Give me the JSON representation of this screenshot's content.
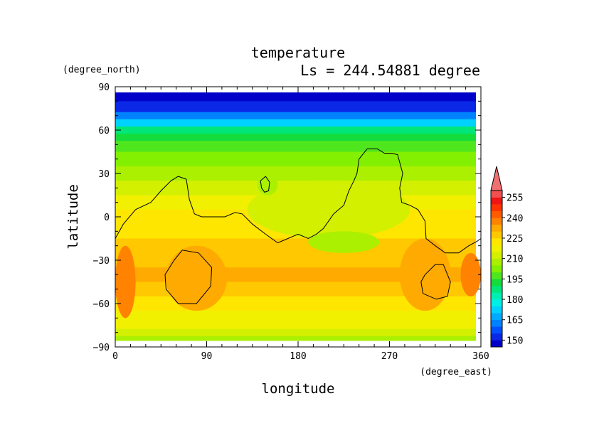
{
  "chart_data": {
    "type": "heatmap",
    "title": "temperature",
    "subtitle": "Ls = 244.54881 degree",
    "xlabel": "longitude",
    "ylabel": "latitude",
    "x_unit": "(degree_east)",
    "y_unit": "(degree_north)",
    "xlim": [
      0,
      360
    ],
    "ylim": [
      -90,
      90
    ],
    "x_ticks": [
      0,
      90,
      180,
      270,
      360
    ],
    "y_ticks": [
      90,
      60,
      30,
      0,
      -30,
      -60,
      -90
    ],
    "x_tick_labels": [
      "0",
      "90",
      "180",
      "270",
      "360"
    ],
    "y_tick_labels": [
      "90",
      "60",
      "30",
      "0",
      "−30",
      "−60",
      "−90"
    ],
    "colorbar": {
      "levels": [
        145,
        150,
        155,
        160,
        165,
        170,
        175,
        180,
        185,
        190,
        195,
        200,
        205,
        210,
        215,
        220,
        225,
        230,
        235,
        240,
        245,
        250,
        255,
        260
      ],
      "tick_labels": [
        "150",
        "165",
        "180",
        "195",
        "210",
        "225",
        "240",
        "255"
      ],
      "colors": [
        "#0000c8",
        "#0a28e6",
        "#0050ff",
        "#0082ff",
        "#00aaff",
        "#00d2ff",
        "#00f0e6",
        "#00f0b4",
        "#00e678",
        "#14dc3c",
        "#50e61e",
        "#82f000",
        "#aaf000",
        "#d2f000",
        "#f0f000",
        "#ffe600",
        "#ffc800",
        "#ffaa00",
        "#ff8200",
        "#ff5a00",
        "#ff3200",
        "#f01414",
        "#f05050"
      ],
      "overflow_color": "#f07070"
    },
    "lat_bands": [
      {
        "lat": 85,
        "value": 147
      },
      {
        "lat": 75,
        "value": 150
      },
      {
        "lat": 70,
        "value": 160
      },
      {
        "lat": 65,
        "value": 172
      },
      {
        "lat": 60,
        "value": 185
      },
      {
        "lat": 55,
        "value": 193
      },
      {
        "lat": 50,
        "value": 198
      },
      {
        "lat": 40,
        "value": 203
      },
      {
        "lat": 30,
        "value": 208
      },
      {
        "lat": 20,
        "value": 213
      },
      {
        "lat": 10,
        "value": 215
      },
      {
        "lat": 0,
        "value": 220
      },
      {
        "lat": -10,
        "value": 223
      },
      {
        "lat": -20,
        "value": 225
      },
      {
        "lat": -30,
        "value": 228
      },
      {
        "lat": -40,
        "value": 230
      },
      {
        "lat": -50,
        "value": 228
      },
      {
        "lat": -60,
        "value": 223
      },
      {
        "lat": -70,
        "value": 219
      },
      {
        "lat": -75,
        "value": 216
      },
      {
        "lat": -80,
        "value": 212
      },
      {
        "lat": -85,
        "value": 208
      }
    ],
    "warm_regions": [
      {
        "lon": [
          0,
          20
        ],
        "lat": [
          -70,
          -20
        ],
        "value": 237
      },
      {
        "lon": [
          50,
          110
        ],
        "lat": [
          -65,
          -20
        ],
        "value": 232
      },
      {
        "lon": [
          280,
          330
        ],
        "lat": [
          -65,
          -15
        ],
        "value": 231
      },
      {
        "lon": [
          340,
          360
        ],
        "lat": [
          -55,
          -25
        ],
        "value": 237
      }
    ],
    "cool_regions": [
      {
        "lon": [
          130,
          290
        ],
        "lat": [
          -15,
          25
        ],
        "value": 210
      },
      {
        "lon": [
          190,
          260
        ],
        "lat": [
          -25,
          -10
        ],
        "value": 208
      },
      {
        "lon": [
          140,
          160
        ],
        "lat": [
          15,
          30
        ],
        "value": 208
      }
    ],
    "contours": [
      [
        [
          0,
          -15
        ],
        [
          8,
          -5
        ],
        [
          20,
          5
        ],
        [
          35,
          10
        ],
        [
          45,
          18
        ],
        [
          55,
          25
        ],
        [
          62,
          28
        ],
        [
          70,
          26
        ],
        [
          73,
          12
        ],
        [
          78,
          2
        ],
        [
          85,
          0
        ],
        [
          100,
          0
        ],
        [
          108,
          0
        ],
        [
          118,
          3
        ],
        [
          125,
          2
        ],
        [
          135,
          -5
        ],
        [
          148,
          -12
        ],
        [
          160,
          -18
        ],
        [
          170,
          -15
        ],
        [
          180,
          -12
        ],
        [
          190,
          -15
        ],
        [
          198,
          -12
        ],
        [
          205,
          -8
        ],
        [
          215,
          2
        ],
        [
          225,
          8
        ],
        [
          230,
          18
        ],
        [
          235,
          25
        ],
        [
          238,
          30
        ],
        [
          240,
          40
        ],
        [
          248,
          47
        ],
        [
          258,
          47
        ],
        [
          265,
          44
        ],
        [
          272,
          44
        ],
        [
          278,
          43
        ],
        [
          283,
          30
        ],
        [
          280,
          20
        ],
        [
          282,
          10
        ],
        [
          290,
          8
        ],
        [
          298,
          5
        ],
        [
          305,
          -3
        ],
        [
          306,
          -15
        ],
        [
          315,
          -20
        ],
        [
          325,
          -25
        ],
        [
          338,
          -25
        ],
        [
          348,
          -20
        ],
        [
          356,
          -17
        ],
        [
          360,
          -15
        ]
      ],
      [
        [
          143,
          25
        ],
        [
          148,
          28
        ],
        [
          152,
          24
        ],
        [
          151,
          18
        ],
        [
          147,
          17
        ],
        [
          144,
          20
        ],
        [
          143,
          25
        ]
      ],
      [
        [
          58,
          -30
        ],
        [
          66,
          -23
        ],
        [
          82,
          -25
        ],
        [
          95,
          -35
        ],
        [
          94,
          -48
        ],
        [
          80,
          -60
        ],
        [
          62,
          -60
        ],
        [
          50,
          -50
        ],
        [
          49,
          -40
        ],
        [
          58,
          -30
        ]
      ],
      [
        [
          305,
          -40
        ],
        [
          315,
          -33
        ],
        [
          323,
          -33
        ],
        [
          330,
          -45
        ],
        [
          327,
          -55
        ],
        [
          316,
          -57
        ],
        [
          303,
          -53
        ],
        [
          301,
          -45
        ],
        [
          305,
          -40
        ]
      ]
    ]
  }
}
